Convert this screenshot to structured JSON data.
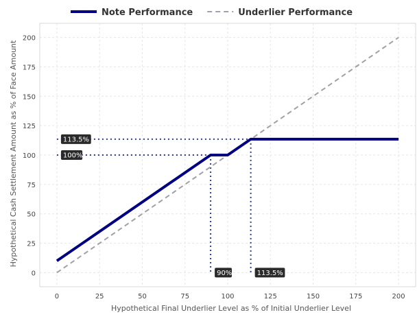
{
  "chart_data": {
    "type": "line",
    "title": "",
    "xlabel": "Hypothetical Final Underlier Level as % of Initial Underlier Level",
    "ylabel": "Hypothetical Cash Settlement Amount as % of Face Amount",
    "xlim": [
      -10,
      210
    ],
    "ylim": [
      -12,
      212
    ],
    "x_ticks": [
      0,
      25,
      50,
      75,
      100,
      125,
      150,
      175,
      200
    ],
    "y_ticks": [
      0,
      25,
      50,
      75,
      100,
      125,
      150,
      175,
      200
    ],
    "grid": true,
    "legend_position": "top",
    "series": [
      {
        "name": "Note Performance",
        "color": "#000080",
        "style": "solid",
        "points": [
          [
            0,
            10
          ],
          [
            90,
            100
          ],
          [
            100,
            100
          ],
          [
            113.5,
            113.5
          ],
          [
            200,
            113.5
          ]
        ]
      },
      {
        "name": "Underlier Performance",
        "color": "#a0a0a8",
        "style": "dashed",
        "points": [
          [
            0,
            0
          ],
          [
            200,
            200
          ]
        ]
      }
    ],
    "reference_lines": [
      {
        "points": [
          [
            0,
            113.5
          ],
          [
            113.5,
            113.5
          ]
        ]
      },
      {
        "points": [
          [
            0,
            100
          ],
          [
            90,
            100
          ]
        ]
      },
      {
        "points": [
          [
            90,
            100
          ],
          [
            90,
            0
          ]
        ]
      },
      {
        "points": [
          [
            113.5,
            113.5
          ],
          [
            113.5,
            0
          ]
        ]
      }
    ],
    "annotations": [
      {
        "text": "113.5%",
        "x": 0,
        "y": 113.5
      },
      {
        "text": "100%",
        "x": 0,
        "y": 100
      },
      {
        "text": "90%",
        "x": 90,
        "y": 0
      },
      {
        "text": "113.5%",
        "x": 113.5,
        "y": 0
      }
    ]
  }
}
